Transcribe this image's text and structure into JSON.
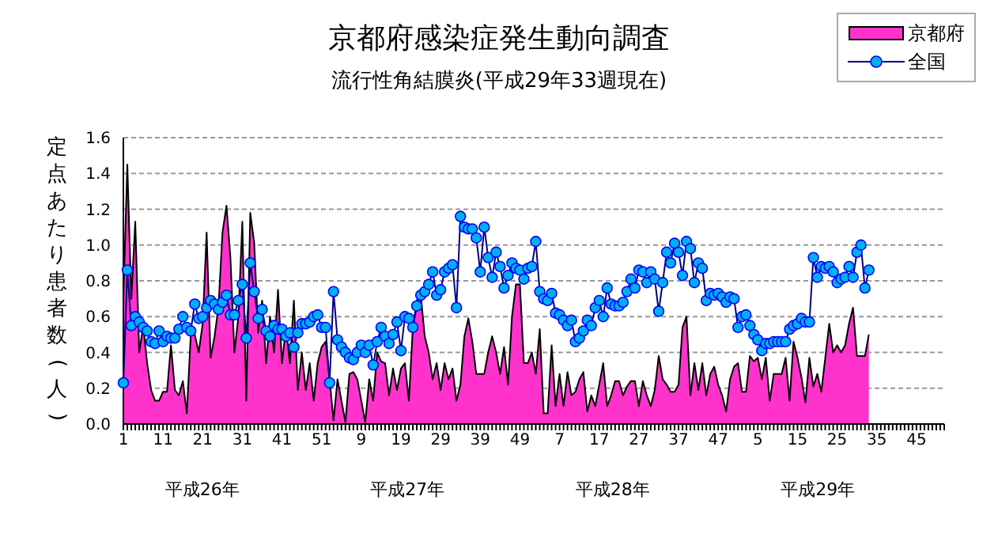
{
  "chart_data": {
    "type": "line",
    "title": "京都府感染症発生動向調査",
    "subtitle": "流行性角結膜炎(平成29年33週現在)",
    "ylabel": "定点あたり患者数(人)",
    "categories": [
      "1",
      null,
      null,
      null,
      null,
      null,
      null,
      null,
      null,
      null,
      "11",
      null,
      null,
      null,
      null,
      null,
      null,
      null,
      null,
      null,
      "21",
      null,
      null,
      null,
      null,
      null,
      null,
      null,
      null,
      null,
      "31",
      null,
      null,
      null,
      null,
      null,
      null,
      null,
      null,
      null,
      "41",
      null,
      null,
      null,
      null,
      null,
      null,
      null,
      null,
      null,
      "51",
      null,
      null,
      null,
      null,
      null,
      null,
      null,
      null,
      null,
      "9",
      null,
      null,
      null,
      null,
      null,
      null,
      null,
      null,
      null,
      "19",
      null,
      null,
      null,
      null,
      null,
      null,
      null,
      null,
      null,
      "29",
      null,
      null,
      null,
      null,
      null,
      null,
      null,
      null,
      null,
      "39",
      null,
      null,
      null,
      null,
      null,
      null,
      null,
      null,
      null,
      "49",
      null,
      null,
      null,
      null,
      null,
      null,
      null,
      null,
      null,
      "7",
      null,
      null,
      null,
      null,
      null,
      null,
      null,
      null,
      null,
      "17",
      null,
      null,
      null,
      null,
      null,
      null,
      null,
      null,
      null,
      "27",
      null,
      null,
      null,
      null,
      null,
      null,
      null,
      null,
      null,
      "37",
      null,
      null,
      null,
      null,
      null,
      null,
      null,
      null,
      null,
      "47",
      null,
      null,
      null,
      null,
      null,
      null,
      null,
      null,
      null,
      "5",
      null,
      null,
      null,
      null,
      null,
      null,
      null,
      null,
      null,
      "15",
      null,
      null,
      null,
      null,
      null,
      null,
      null,
      null,
      null,
      "25",
      null,
      null,
      null,
      null,
      null,
      null,
      null,
      null,
      null,
      "35",
      null,
      null,
      null,
      null,
      null,
      null,
      null,
      null,
      null,
      "45",
      null,
      null,
      null,
      null,
      null,
      null,
      null
    ],
    "series": [
      {
        "name": "京都府",
        "type": "area",
        "color": "#ff33cc",
        "values": [
          0.7,
          1.45,
          0.7,
          1.13,
          0.4,
          0.55,
          0.34,
          0.19,
          0.13,
          0.13,
          0.18,
          0.18,
          0.44,
          0.19,
          0.16,
          0.24,
          0.06,
          0.5,
          0.5,
          0.4,
          0.56,
          1.07,
          0.37,
          0.49,
          0.66,
          1.07,
          1.22,
          0.93,
          0.4,
          0.6,
          1.13,
          0.13,
          1.18,
          1.01,
          0.51,
          0.69,
          0.34,
          0.6,
          0.4,
          0.75,
          0.34,
          0.54,
          0.34,
          0.69,
          0.19,
          0.4,
          0.19,
          0.34,
          0.13,
          0.34,
          0.43,
          0.46,
          0.25,
          0.02,
          0.25,
          0.13,
          0.01,
          0.28,
          0.29,
          0.25,
          0.13,
          0.01,
          0.25,
          0.13,
          0.4,
          0.35,
          0.34,
          0.16,
          0.31,
          0.19,
          0.31,
          0.34,
          0.13,
          0.54,
          0.69,
          0.72,
          0.49,
          0.4,
          0.25,
          0.34,
          0.19,
          0.34,
          0.25,
          0.31,
          0.13,
          0.22,
          0.49,
          0.59,
          0.46,
          0.28,
          0.28,
          0.28,
          0.4,
          0.49,
          0.4,
          0.28,
          0.43,
          0.22,
          0.6,
          0.78,
          0.78,
          0.34,
          0.34,
          0.4,
          0.28,
          0.53,
          0.06,
          0.06,
          0.44,
          0.1,
          0.28,
          0.1,
          0.29,
          0.16,
          0.18,
          0.25,
          0.29,
          0.07,
          0.16,
          0.1,
          0.22,
          0.34,
          0.1,
          0.16,
          0.24,
          0.24,
          0.16,
          0.21,
          0.24,
          0.24,
          0.1,
          0.24,
          0.16,
          0.1,
          0.19,
          0.38,
          0.25,
          0.22,
          0.18,
          0.18,
          0.22,
          0.54,
          0.6,
          0.16,
          0.34,
          0.19,
          0.34,
          0.16,
          0.28,
          0.32,
          0.22,
          0.16,
          0.07,
          0.25,
          0.32,
          0.34,
          0.18,
          0.18,
          0.38,
          0.35,
          0.37,
          0.25,
          0.37,
          0.13,
          0.28,
          0.28,
          0.28,
          0.37,
          0.13,
          0.46,
          0.37,
          0.26,
          0.12,
          0.37,
          0.21,
          0.28,
          0.18,
          0.37,
          0.56,
          0.4,
          0.44,
          0.4,
          0.44,
          0.56,
          0.65,
          0.38,
          0.38,
          0.38,
          0.5,
          null,
          null,
          null,
          null,
          null,
          null,
          null,
          null,
          null,
          null,
          null,
          null,
          null,
          null,
          null,
          null,
          null,
          null,
          null
        ]
      },
      {
        "name": "全国",
        "color": "#00b0f0",
        "marker": "circle",
        "values": [
          0.23,
          0.86,
          0.55,
          0.6,
          0.57,
          0.54,
          0.52,
          0.46,
          0.45,
          0.52,
          0.46,
          0.49,
          0.48,
          0.48,
          0.53,
          0.6,
          0.54,
          0.52,
          0.67,
          0.59,
          0.6,
          0.65,
          0.69,
          0.67,
          0.64,
          0.68,
          0.72,
          0.61,
          0.61,
          0.69,
          0.78,
          0.48,
          0.9,
          0.74,
          0.59,
          0.64,
          0.52,
          0.49,
          0.55,
          0.53,
          0.53,
          0.49,
          0.51,
          0.43,
          0.51,
          0.56,
          0.56,
          0.57,
          0.6,
          0.61,
          0.54,
          0.54,
          0.23,
          0.74,
          0.47,
          0.43,
          0.4,
          0.37,
          0.36,
          0.4,
          0.44,
          0.4,
          0.44,
          0.33,
          0.46,
          0.54,
          0.49,
          0.45,
          0.5,
          0.57,
          0.41,
          0.6,
          0.59,
          0.54,
          0.66,
          0.72,
          0.74,
          0.78,
          0.85,
          0.72,
          0.75,
          0.85,
          0.87,
          0.89,
          0.65,
          1.16,
          1.1,
          1.09,
          1.09,
          1.04,
          0.85,
          1.1,
          0.93,
          0.82,
          0.96,
          0.88,
          0.76,
          0.83,
          0.9,
          0.87,
          0.86,
          0.81,
          0.87,
          0.88,
          1.02,
          0.74,
          0.7,
          0.69,
          0.73,
          0.62,
          0.61,
          0.58,
          0.55,
          0.58,
          0.46,
          0.48,
          0.52,
          0.58,
          0.55,
          0.65,
          0.69,
          0.6,
          0.76,
          0.67,
          0.66,
          0.66,
          0.68,
          0.74,
          0.81,
          0.76,
          0.86,
          0.85,
          0.79,
          0.85,
          0.81,
          0.63,
          0.79,
          0.96,
          0.9,
          1.01,
          0.96,
          0.83,
          1.02,
          0.98,
          0.79,
          0.9,
          0.87,
          0.69,
          0.73,
          0.72,
          0.73,
          0.71,
          0.68,
          0.71,
          0.7,
          0.54,
          0.6,
          0.61,
          0.55,
          0.5,
          0.47,
          0.41,
          0.45,
          0.45,
          0.46,
          0.46,
          0.46,
          0.46,
          0.53,
          0.55,
          0.56,
          0.59,
          0.57,
          0.57,
          0.93,
          0.82,
          0.88,
          0.87,
          0.88,
          0.85,
          0.79,
          0.81,
          0.82,
          0.88,
          0.82,
          0.96,
          1.0,
          0.76,
          0.86,
          null,
          null,
          null,
          null,
          null,
          null,
          null,
          null,
          null,
          null,
          null,
          null,
          null,
          null,
          null,
          null,
          null,
          null,
          null
        ]
      }
    ],
    "ylim": [
      0,
      1.6
    ],
    "yticks": [
      {
        "value": 0,
        "label": "0.0"
      },
      0.2,
      0.4,
      0.6,
      0.8,
      {
        "value": 1,
        "label": "1.0"
      },
      1.2,
      1.4,
      1.6
    ],
    "grid": "y",
    "legend": "top right",
    "annotations": [
      "平成26年",
      "平成27年",
      "平成28年",
      "平成29年"
    ]
  }
}
